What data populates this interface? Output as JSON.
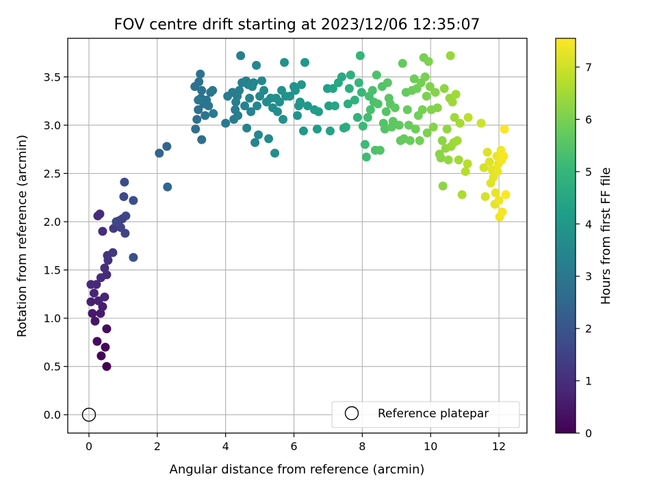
{
  "chart_data": {
    "type": "scatter",
    "title": "FOV centre drift starting at 2023/12/06 12:35:07",
    "xlabel": "Angular distance from reference (arcmin)",
    "ylabel": "Rotation from reference (arcmin)",
    "xlim": [
      -0.62,
      12.82
    ],
    "ylim": [
      -0.19,
      3.9
    ],
    "xticks": [
      0,
      2,
      4,
      6,
      8,
      10,
      12
    ],
    "yticks": [
      0.0,
      0.5,
      1.0,
      1.5,
      2.0,
      2.5,
      3.0,
      3.5
    ],
    "ytick_labels": [
      "0.0",
      "0.5",
      "1.0",
      "1.5",
      "2.0",
      "2.5",
      "3.0",
      "3.5"
    ],
    "grid": true,
    "legend": {
      "position": "lower-right",
      "entries": [
        {
          "label": "Reference platepar",
          "marker": "open-circle"
        }
      ]
    },
    "reference_point": {
      "x": 0,
      "y": 0,
      "marker": "open-circle"
    },
    "colorbar": {
      "label": "Hours from first FF file",
      "colormap": "viridis",
      "range": [
        0,
        7.55
      ],
      "ticks": [
        0,
        1,
        2,
        3,
        4,
        5,
        6,
        7
      ],
      "colors": [
        "#440154",
        "#482878",
        "#3e4989",
        "#31688e",
        "#26828e",
        "#1f9e89",
        "#35b779",
        "#6ece58",
        "#b5de2b",
        "#fde725"
      ]
    },
    "points": [
      [
        0.52,
        0.5,
        0.0
      ],
      [
        0.36,
        0.61,
        0.1
      ],
      [
        0.48,
        0.7,
        0.15
      ],
      [
        0.24,
        0.76,
        0.2
      ],
      [
        0.52,
        0.89,
        0.25
      ],
      [
        0.18,
        0.97,
        0.45
      ],
      [
        0.1,
        1.05,
        0.5
      ],
      [
        0.34,
        1.05,
        0.55
      ],
      [
        0.4,
        1.12,
        0.6
      ],
      [
        0.06,
        1.17,
        0.65
      ],
      [
        0.28,
        1.18,
        0.7
      ],
      [
        0.46,
        1.22,
        0.75
      ],
      [
        0.15,
        1.26,
        0.8
      ],
      [
        0.22,
        1.35,
        0.85
      ],
      [
        0.06,
        1.35,
        0.9
      ],
      [
        0.35,
        1.42,
        0.95
      ],
      [
        0.52,
        1.45,
        1.0
      ],
      [
        0.46,
        1.52,
        1.05
      ],
      [
        0.56,
        1.6,
        1.1
      ],
      [
        0.54,
        1.65,
        1.15
      ],
      [
        0.7,
        1.68,
        1.2
      ],
      [
        0.4,
        1.9,
        1.0
      ],
      [
        0.26,
        2.06,
        0.95
      ],
      [
        0.32,
        2.08,
        1.0
      ],
      [
        0.72,
        1.93,
        1.3
      ],
      [
        0.88,
        2.01,
        1.4
      ],
      [
        0.98,
        2.03,
        1.45
      ],
      [
        0.93,
        1.94,
        1.5
      ],
      [
        1.06,
        1.88,
        1.55
      ],
      [
        1.08,
        2.06,
        1.6
      ],
      [
        0.8,
        2.0,
        1.65
      ],
      [
        1.02,
        2.26,
        1.7
      ],
      [
        1.04,
        2.41,
        1.75
      ],
      [
        1.3,
        2.22,
        1.8
      ],
      [
        1.3,
        1.63,
        1.85
      ],
      [
        2.06,
        2.71,
        2.4
      ],
      [
        2.28,
        2.78,
        2.45
      ],
      [
        2.3,
        2.36,
        2.5
      ],
      [
        3.12,
        2.96,
        2.7
      ],
      [
        3.3,
        2.85,
        2.72
      ],
      [
        3.16,
        3.06,
        2.75
      ],
      [
        3.2,
        3.16,
        2.78
      ],
      [
        3.1,
        3.4,
        2.8
      ],
      [
        3.22,
        3.45,
        2.82
      ],
      [
        3.26,
        3.53,
        2.84
      ],
      [
        3.3,
        3.36,
        2.86
      ],
      [
        3.28,
        3.28,
        2.88
      ],
      [
        3.36,
        3.22,
        2.9
      ],
      [
        3.4,
        3.1,
        2.92
      ],
      [
        3.44,
        3.26,
        2.94
      ],
      [
        3.5,
        3.2,
        2.96
      ],
      [
        3.56,
        3.34,
        2.98
      ],
      [
        3.62,
        3.36,
        3.0
      ],
      [
        3.64,
        3.12,
        3.02
      ],
      [
        3.2,
        3.26,
        3.04
      ],
      [
        4.0,
        3.02,
        3.1
      ],
      [
        4.06,
        3.3,
        3.12
      ],
      [
        4.2,
        3.34,
        3.14
      ],
      [
        4.24,
        3.06,
        3.16
      ],
      [
        4.28,
        3.16,
        3.18
      ],
      [
        4.3,
        3.24,
        3.2
      ],
      [
        4.34,
        3.3,
        3.22
      ],
      [
        4.36,
        3.1,
        3.24
      ],
      [
        4.4,
        3.36,
        3.26
      ],
      [
        4.44,
        3.72,
        3.28
      ],
      [
        4.48,
        3.44,
        3.3
      ],
      [
        4.56,
        3.2,
        3.32
      ],
      [
        4.6,
        3.46,
        3.34
      ],
      [
        4.62,
        2.97,
        3.36
      ],
      [
        4.66,
        3.42,
        3.38
      ],
      [
        4.7,
        3.28,
        3.4
      ],
      [
        4.74,
        3.14,
        3.42
      ],
      [
        4.78,
        3.4,
        3.44
      ],
      [
        4.82,
        3.44,
        3.46
      ],
      [
        4.86,
        2.82,
        3.48
      ],
      [
        4.9,
        3.62,
        3.5
      ],
      [
        4.92,
        3.2,
        3.52
      ],
      [
        4.96,
        2.9,
        3.54
      ],
      [
        5.0,
        3.3,
        3.56
      ],
      [
        5.06,
        3.46,
        3.58
      ],
      [
        5.12,
        3.36,
        3.6
      ],
      [
        5.2,
        3.24,
        3.62
      ],
      [
        5.26,
        2.86,
        3.64
      ],
      [
        5.32,
        3.28,
        3.66
      ],
      [
        5.38,
        3.18,
        3.68
      ],
      [
        5.44,
        2.71,
        3.7
      ],
      [
        5.48,
        3.28,
        3.72
      ],
      [
        5.52,
        3.14,
        3.74
      ],
      [
        5.58,
        3.24,
        3.76
      ],
      [
        5.64,
        3.36,
        3.78
      ],
      [
        5.68,
        3.06,
        3.8
      ],
      [
        5.72,
        3.65,
        3.82
      ],
      [
        5.76,
        3.3,
        3.84
      ],
      [
        5.88,
        3.3,
        3.86
      ],
      [
        6.0,
        3.4,
        3.88
      ],
      [
        6.04,
        3.36,
        3.9
      ],
      [
        6.1,
        3.1,
        3.92
      ],
      [
        6.14,
        3.2,
        3.94
      ],
      [
        6.18,
        3.24,
        3.96
      ],
      [
        6.22,
        3.42,
        3.98
      ],
      [
        6.28,
        2.94,
        4.0
      ],
      [
        6.32,
        3.65,
        4.02
      ],
      [
        6.4,
        3.2,
        4.04
      ],
      [
        6.6,
        3.16,
        4.1
      ],
      [
        6.68,
        2.96,
        4.15
      ],
      [
        6.72,
        3.14,
        4.2
      ],
      [
        6.98,
        3.38,
        4.25
      ],
      [
        7.02,
        3.2,
        4.3
      ],
      [
        7.06,
        2.94,
        4.35
      ],
      [
        7.14,
        3.38,
        4.4
      ],
      [
        7.2,
        3.2,
        4.45
      ],
      [
        7.3,
        3.44,
        4.5
      ],
      [
        7.4,
        3.5,
        4.55
      ],
      [
        7.46,
        2.97,
        4.6
      ],
      [
        7.52,
        2.98,
        4.65
      ],
      [
        7.58,
        3.22,
        4.7
      ],
      [
        7.62,
        3.38,
        4.75
      ],
      [
        7.66,
        3.52,
        4.8
      ],
      [
        7.78,
        3.26,
        4.85
      ],
      [
        7.86,
        3.08,
        4.9
      ],
      [
        7.9,
        3.44,
        4.95
      ],
      [
        7.94,
        3.72,
        5.0
      ],
      [
        7.98,
        3.34,
        5.05
      ],
      [
        8.02,
        2.99,
        5.1
      ],
      [
        8.08,
        2.8,
        5.15
      ],
      [
        8.12,
        2.67,
        5.2
      ],
      [
        8.16,
        3.08,
        5.25
      ],
      [
        8.2,
        3.3,
        5.3
      ],
      [
        8.24,
        3.16,
        5.32
      ],
      [
        8.3,
        3.36,
        5.34
      ],
      [
        8.34,
        3.24,
        5.36
      ],
      [
        8.38,
        2.74,
        5.38
      ],
      [
        8.42,
        3.52,
        5.4
      ],
      [
        8.46,
        3.22,
        5.42
      ],
      [
        8.52,
        2.74,
        5.44
      ],
      [
        8.58,
        3.4,
        5.46
      ],
      [
        8.62,
        3.02,
        5.48
      ],
      [
        8.66,
        2.96,
        5.5
      ],
      [
        8.7,
        3.14,
        5.52
      ],
      [
        8.74,
        3.44,
        5.54
      ],
      [
        8.78,
        3.28,
        5.56
      ],
      [
        8.82,
        3.22,
        5.58
      ],
      [
        8.86,
        2.98,
        5.6
      ],
      [
        8.9,
        3.04,
        5.62
      ],
      [
        8.96,
        3.18,
        5.64
      ],
      [
        9.08,
        3.0,
        5.66
      ],
      [
        9.12,
        2.84,
        5.68
      ],
      [
        9.18,
        3.64,
        5.7
      ],
      [
        9.22,
        2.86,
        5.72
      ],
      [
        9.28,
        3.34,
        5.74
      ],
      [
        9.32,
        3.16,
        5.76
      ],
      [
        9.36,
        3.0,
        5.78
      ],
      [
        9.4,
        2.84,
        5.8
      ],
      [
        9.46,
        3.36,
        5.82
      ],
      [
        9.52,
        3.48,
        5.84
      ],
      [
        9.56,
        2.96,
        5.86
      ],
      [
        9.6,
        3.38,
        5.88
      ],
      [
        9.64,
        3.1,
        5.9
      ],
      [
        9.68,
        2.84,
        5.92
      ],
      [
        9.72,
        3.44,
        5.94
      ],
      [
        9.76,
        3.16,
        5.96
      ],
      [
        9.8,
        3.7,
        5.98
      ],
      [
        9.84,
        3.5,
        6.0
      ],
      [
        9.88,
        3.3,
        6.02
      ],
      [
        9.9,
        2.92,
        6.04
      ],
      [
        9.94,
        3.66,
        6.06
      ],
      [
        9.98,
        3.4,
        6.08
      ],
      [
        10.02,
        3.16,
        6.1
      ],
      [
        10.08,
        2.98,
        6.12
      ],
      [
        10.14,
        3.34,
        6.14
      ],
      [
        10.2,
        3.18,
        6.16
      ],
      [
        10.26,
        2.7,
        6.18
      ],
      [
        10.3,
        2.66,
        6.2
      ],
      [
        10.34,
        2.84,
        6.22
      ],
      [
        10.36,
        2.37,
        6.24
      ],
      [
        10.4,
        3.38,
        6.26
      ],
      [
        10.44,
        2.76,
        6.28
      ],
      [
        10.48,
        2.96,
        6.3
      ],
      [
        10.52,
        2.64,
        6.32
      ],
      [
        10.56,
        3.28,
        6.34
      ],
      [
        10.58,
        3.72,
        6.36
      ],
      [
        10.6,
        2.78,
        6.38
      ],
      [
        10.64,
        3.24,
        6.4
      ],
      [
        10.68,
        2.82,
        6.42
      ],
      [
        10.7,
        3.08,
        6.44
      ],
      [
        10.74,
        3.32,
        6.46
      ],
      [
        10.78,
        2.84,
        6.48
      ],
      [
        10.82,
        2.64,
        6.5
      ],
      [
        10.86,
        3.02,
        6.52
      ],
      [
        10.92,
        2.28,
        6.6
      ],
      [
        11.02,
        2.52,
        6.7
      ],
      [
        11.08,
        2.6,
        6.75
      ],
      [
        11.1,
        3.08,
        6.8
      ],
      [
        11.48,
        3.02,
        7.0
      ],
      [
        11.56,
        2.56,
        7.05
      ],
      [
        11.6,
        2.26,
        7.1
      ],
      [
        11.66,
        2.72,
        7.15
      ],
      [
        11.72,
        2.62,
        7.2
      ],
      [
        11.76,
        2.4,
        7.22
      ],
      [
        11.8,
        2.54,
        7.24
      ],
      [
        11.84,
        2.46,
        7.26
      ],
      [
        11.88,
        2.18,
        7.28
      ],
      [
        11.9,
        2.3,
        7.3
      ],
      [
        11.94,
        2.68,
        7.32
      ],
      [
        11.96,
        2.52,
        7.34
      ],
      [
        11.98,
        2.6,
        7.36
      ],
      [
        12.0,
        2.22,
        7.38
      ],
      [
        12.02,
        2.05,
        7.4
      ],
      [
        12.06,
        2.74,
        7.42
      ],
      [
        12.08,
        2.64,
        7.44
      ],
      [
        12.1,
        2.1,
        7.46
      ],
      [
        12.14,
        2.68,
        7.48
      ],
      [
        12.16,
        2.96,
        7.5
      ],
      [
        12.2,
        2.28,
        7.52
      ]
    ]
  }
}
